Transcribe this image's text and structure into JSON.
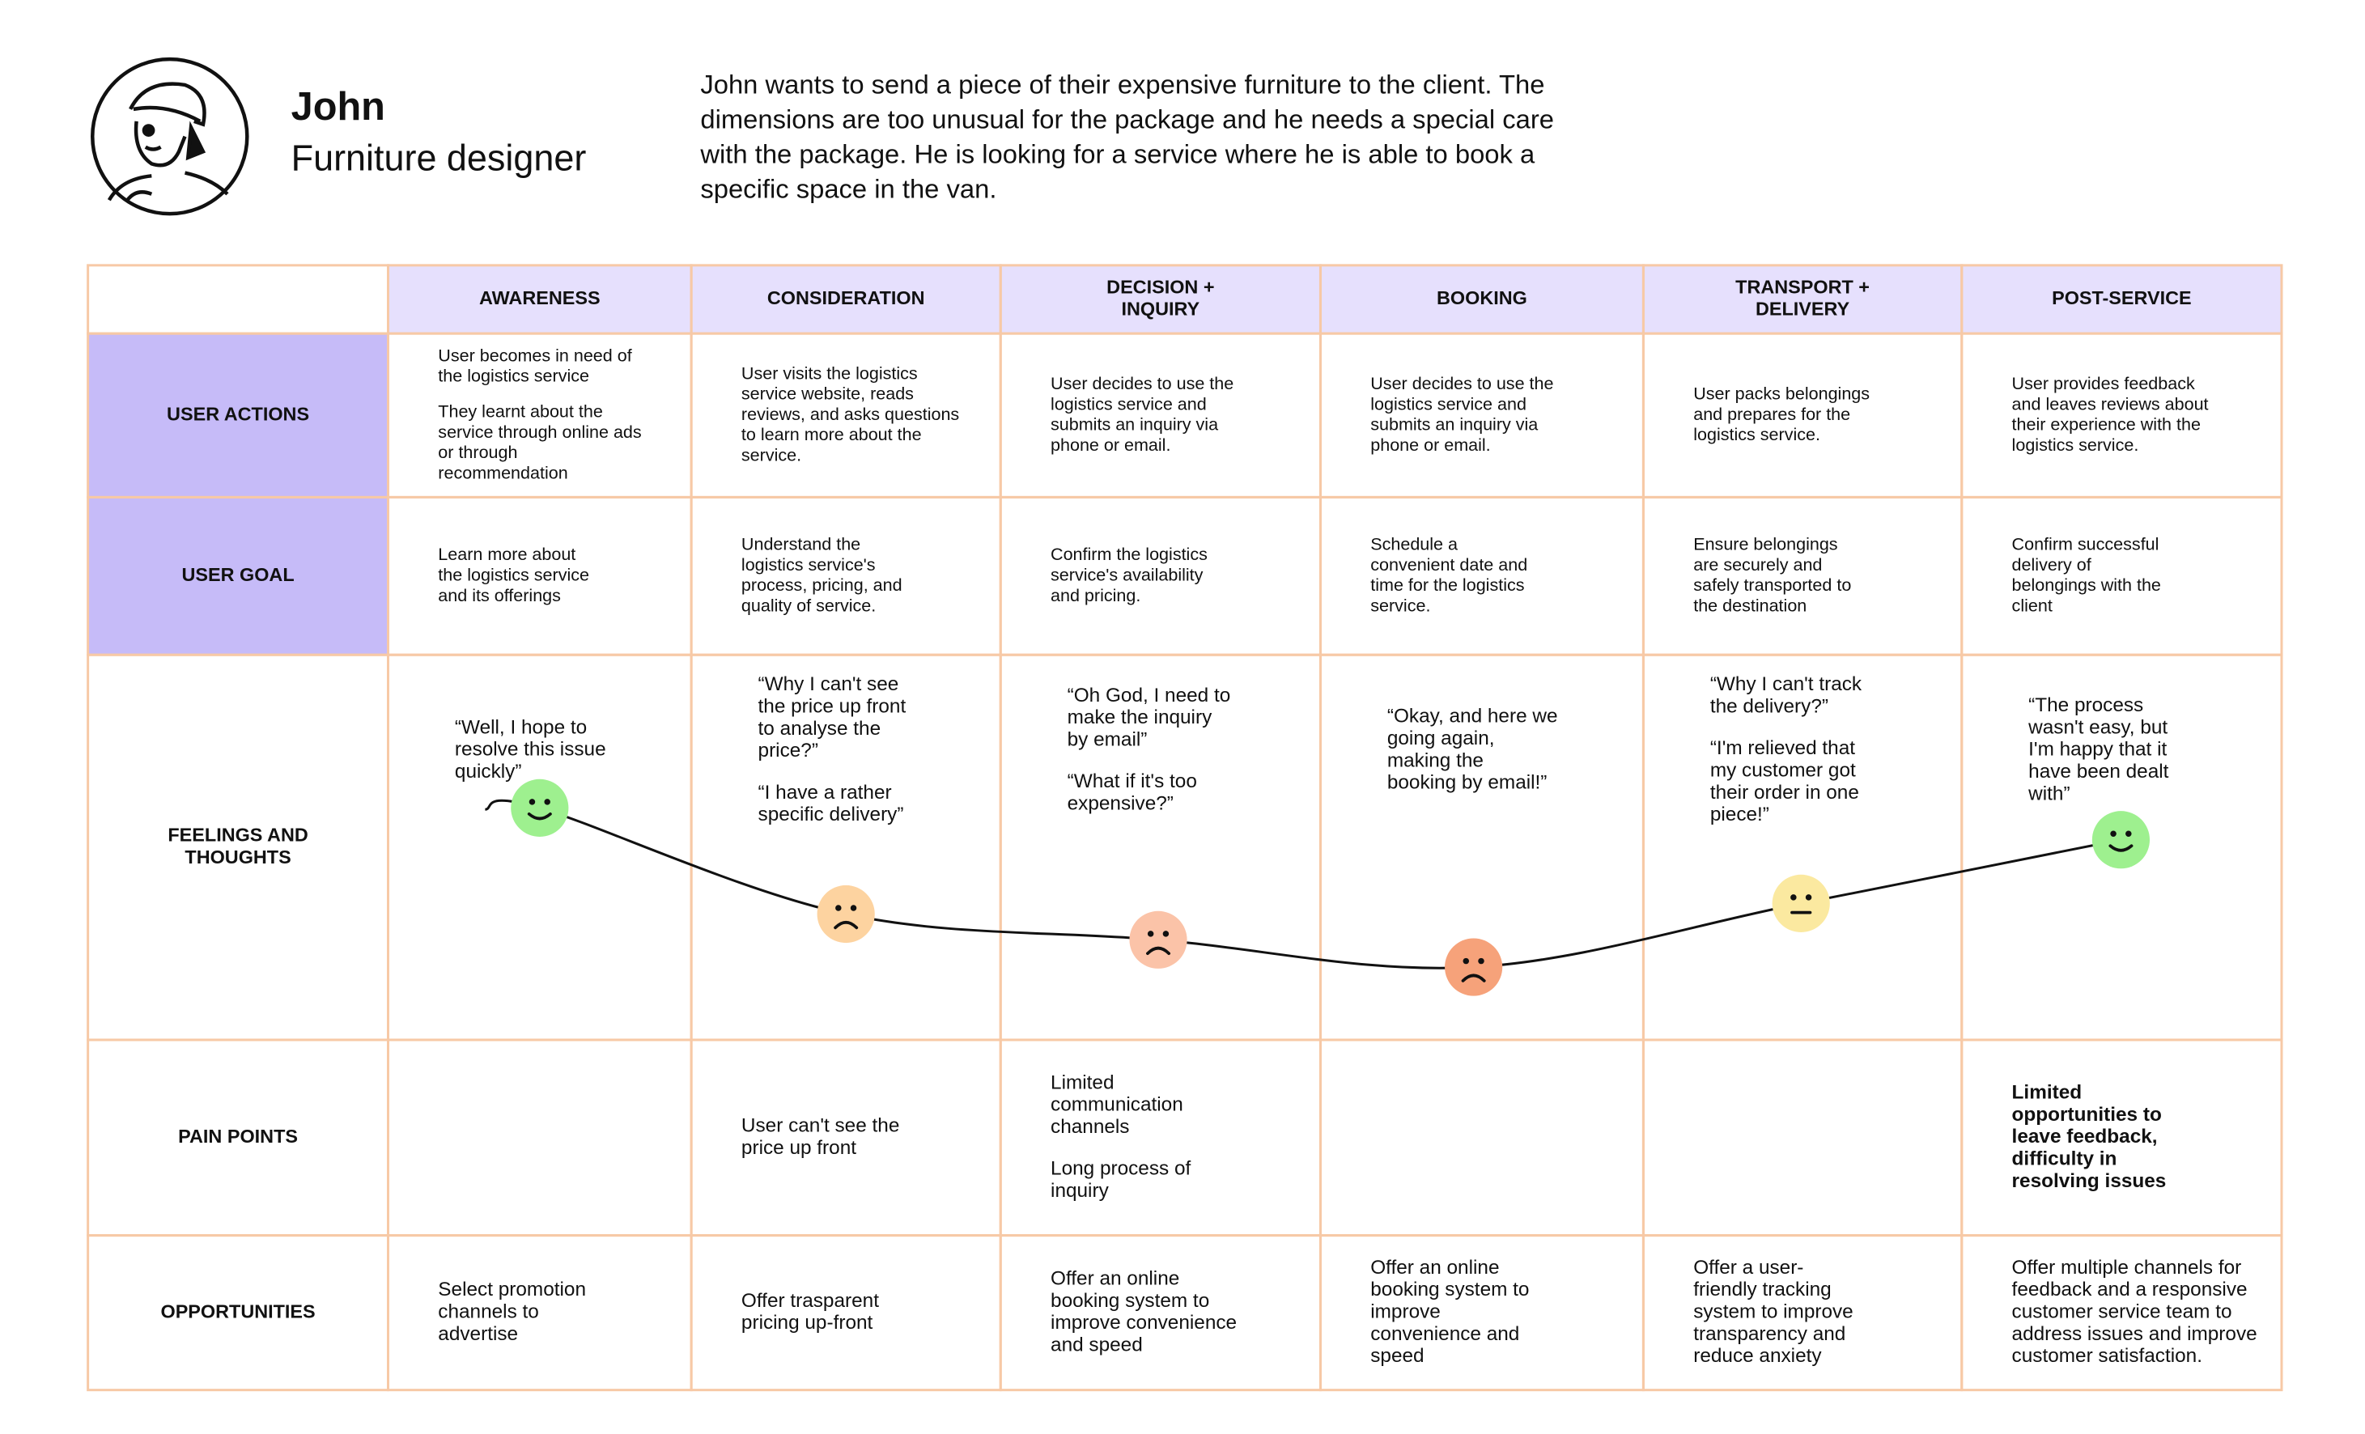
{
  "persona": {
    "name": "John",
    "role": "Furniture designer",
    "description": [
      "John wants to send a piece of their expensive furniture to the client. The",
      "dimensions are too unusual for the package and he needs a special care",
      "with the package. He is looking for a service where he is able to book a",
      "specific space in the van."
    ]
  },
  "journey": {
    "stages": [
      [
        "AWARENESS"
      ],
      [
        "CONSIDERATION"
      ],
      [
        "DECISION +",
        "INQUIRY"
      ],
      [
        "BOOKING"
      ],
      [
        "TRANSPORT +",
        "DELIVERY"
      ],
      [
        "POST-SERVICE"
      ]
    ],
    "rows": [
      {
        "label": [
          "USER ACTIONS"
        ],
        "cells": [
          [
            [
              "User becomes in need of",
              "the logistics service"
            ],
            [
              "They learnt about the",
              "service through online ads",
              "or through",
              "recommendation"
            ]
          ],
          [
            [
              "User visits the logistics",
              "service website, reads",
              "reviews, and asks questions",
              "to learn more about the",
              "service."
            ]
          ],
          [
            [
              "User decides to use the",
              "logistics service and",
              "submits an inquiry via",
              "phone or email."
            ]
          ],
          [
            [
              "User decides to use the",
              "logistics service and",
              "submits an inquiry via",
              "phone or email."
            ]
          ],
          [
            [
              "User packs belongings",
              "and prepares for the",
              "logistics service."
            ]
          ],
          [
            [
              "User provides feedback",
              "and leaves reviews about",
              "their experience with the",
              "logistics service."
            ]
          ]
        ]
      },
      {
        "label": [
          "USER GOAL"
        ],
        "cells": [
          [
            [
              "Learn more about",
              "the logistics service",
              "and its offerings"
            ]
          ],
          [
            [
              "Understand the",
              "logistics service's",
              "process, pricing, and",
              "quality of service."
            ]
          ],
          [
            [
              "Confirm the logistics",
              "service's availability",
              "and pricing."
            ]
          ],
          [
            [
              "Schedule a",
              "convenient date and",
              "time for the logistics",
              "service."
            ]
          ],
          [
            [
              "Ensure belongings",
              "are securely and",
              "safely transported to",
              "the destination"
            ]
          ],
          [
            [
              "Confirm successful",
              "delivery of",
              "belongings with the",
              "client"
            ]
          ]
        ]
      },
      {
        "label": [
          "FEELINGS AND",
          "THOUGHTS"
        ],
        "cells": [
          [
            [
              "“Well, I hope to",
              "resolve this issue",
              "quickly”"
            ]
          ],
          [
            [
              "“Why I can't see",
              "the price up front",
              "to analyse the",
              "price?”"
            ],
            [
              "“I have a rather",
              "specific delivery”"
            ]
          ],
          [
            [
              "“Oh God, I need to",
              "make the inquiry",
              "by email”"
            ],
            [
              "“What if it's too",
              "expensive?”"
            ]
          ],
          [
            [
              "“Okay, and here we",
              "going again,",
              "making the",
              "booking by email!”"
            ]
          ],
          [
            [
              "“Why I can't track",
              "the delivery?”"
            ],
            [
              "“I'm relieved that",
              "my customer got",
              "their order in one",
              "piece!”"
            ]
          ],
          [
            [
              "“The process",
              "wasn't easy, but",
              "I'm happy that it",
              "have been dealt",
              "with”"
            ]
          ]
        ]
      },
      {
        "label": [
          "PAIN POINTS"
        ],
        "cells": [
          [],
          [
            [
              "User can't see the",
              "price up front"
            ]
          ],
          [
            [
              "Limited",
              "communication",
              "channels"
            ],
            [
              "Long process of",
              "inquiry"
            ]
          ],
          [],
          [],
          [
            [
              "Limited",
              "opportunities to",
              "leave feedback,",
              "difficulty in",
              "resolving issues"
            ]
          ]
        ]
      },
      {
        "label": [
          "OPPORTUNITIES"
        ],
        "cells": [
          [
            [
              "Select promotion",
              "channels to",
              "advertise"
            ]
          ],
          [
            [
              "Offer trasparent",
              "pricing up-front"
            ]
          ],
          [
            [
              "Offer an online",
              "booking system to",
              "improve convenience",
              "and speed"
            ]
          ],
          [
            [
              "Offer an online",
              "booking system to",
              "improve",
              "convenience and",
              "speed"
            ]
          ],
          [
            [
              "Offer a user-",
              "friendly tracking",
              "system to improve",
              "transparency and",
              "reduce anxiety"
            ]
          ],
          [
            [
              "Offer multiple channels for",
              "feedback and a responsive",
              "customer service team to",
              "address issues and improve",
              "customer satisfaction."
            ]
          ]
        ]
      }
    ]
  }
}
